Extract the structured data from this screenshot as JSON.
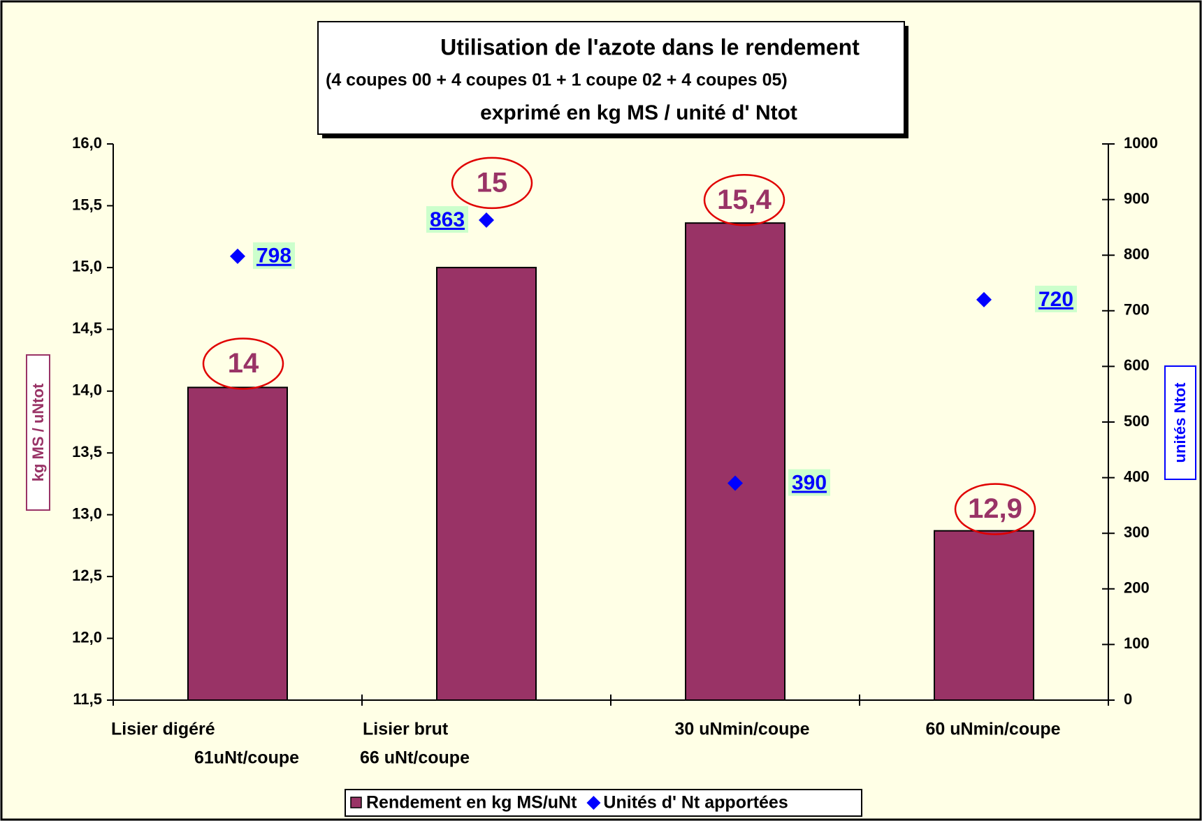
{
  "chart_data": {
    "type": "bar",
    "title": "Utilisation de l'azote dans le rendement",
    "subtitle": "(4 coupes 00 + 4 coupes 01 + 1 coupe 02 + 4 coupes 05)",
    "title_line3": "exprimé en kg MS / unité d' Ntot",
    "y_label": "kg MS / uNtot",
    "y2_label": "unités Ntot",
    "categories": [
      [
        "Lisier digéré",
        "61uNt/coupe"
      ],
      [
        "Lisier brut",
        "66 uNt/coupe"
      ],
      [
        "30 uNmin/coupe"
      ],
      [
        "60 uNmin/coupe"
      ]
    ],
    "series": [
      {
        "name": "Rendement en kg MS/uNt",
        "type": "bar",
        "color": "#993366",
        "values": [
          14.03,
          15.0,
          15.36,
          12.87
        ],
        "value_labels": [
          "14",
          "15",
          "15,4",
          "12,9"
        ]
      },
      {
        "name": "Unités d' Nt apportées",
        "type": "scatter",
        "axis": "y2",
        "color": "#0000ff",
        "values": [
          798,
          863,
          390,
          720
        ]
      }
    ],
    "ylim": [
      11.5,
      16.0
    ],
    "yticks": [
      {
        "value": 11.5,
        "label": "11,5"
      },
      {
        "value": 12.0,
        "label": "12,0"
      },
      {
        "value": 12.5,
        "label": "12,5"
      },
      {
        "value": 13.0,
        "label": "13,0"
      },
      {
        "value": 13.5,
        "label": "13,5"
      },
      {
        "value": 14.0,
        "label": "14,0"
      },
      {
        "value": 14.5,
        "label": "14,5"
      },
      {
        "value": 15.0,
        "label": "15,0"
      },
      {
        "value": 15.5,
        "label": "15,5"
      },
      {
        "value": 16.0,
        "label": "16,0"
      }
    ],
    "y2lim": [
      0,
      1000
    ],
    "y2ticks": [
      0,
      100,
      200,
      300,
      400,
      500,
      600,
      700,
      800,
      900,
      1000
    ]
  }
}
